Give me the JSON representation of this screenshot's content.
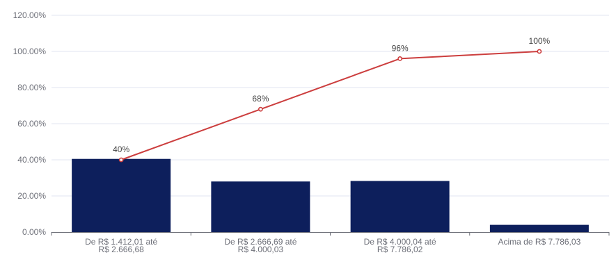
{
  "chart_data": {
    "type": "bar+line",
    "categories": [
      [
        "De  R$ 1.412,01 até",
        "R$ 2.666,68"
      ],
      [
        "De  R$ 2.666,69 até",
        "R$ 4.000,03"
      ],
      [
        "De  R$ 4.000,04 até",
        "R$ 7.786,02"
      ],
      [
        "Acima de  R$ 7.786,03"
      ]
    ],
    "series": [
      {
        "type": "bar",
        "values": [
          40.5,
          28.0,
          28.3,
          4.0
        ],
        "color": "#0d1f5c"
      },
      {
        "type": "line",
        "values": [
          40,
          68,
          96,
          100
        ],
        "labels": [
          "40%",
          "68%",
          "96%",
          "100%"
        ],
        "color": "#cc3e3e"
      }
    ],
    "y_ticks": [
      "0.00%",
      "20.00%",
      "40.00%",
      "60.00%",
      "80.00%",
      "100.00%",
      "120.00%"
    ],
    "ylim": [
      0,
      120
    ],
    "grid": true,
    "legend": "none"
  }
}
